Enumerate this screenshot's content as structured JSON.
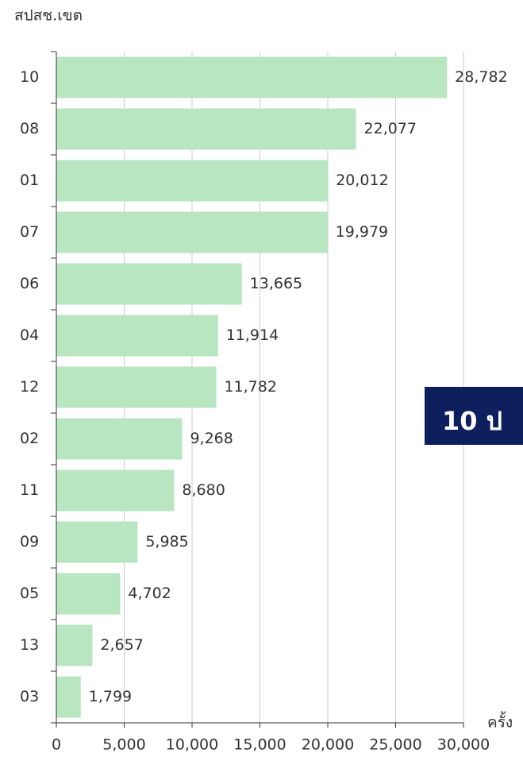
{
  "chart_data": {
    "type": "bar",
    "orientation": "horizontal",
    "y_label": "สปสช.เขต",
    "x_label": "ครั้ง",
    "categories": [
      "10",
      "08",
      "01",
      "07",
      "06",
      "04",
      "12",
      "02",
      "11",
      "09",
      "05",
      "13",
      "03"
    ],
    "values": [
      28782,
      22077,
      20012,
      19979,
      13665,
      11914,
      11782,
      9268,
      8680,
      5985,
      4702,
      2657,
      1799
    ],
    "value_labels": [
      "28,782",
      "22,077",
      "20,012",
      "19,979",
      "13,665",
      "11,914",
      "11,782",
      "9,268",
      "8,680",
      "5,985",
      "4,702",
      "2,657",
      "1,799"
    ],
    "color": "#b8e6c1",
    "xlim": [
      0,
      30000
    ],
    "xticks": [
      0,
      {
        "value": 5000,
        "label": "5,000"
      },
      {
        "value": 10000,
        "label": "10,000"
      },
      {
        "value": 15000,
        "label": "15,000"
      },
      {
        "value": 20000,
        "label": "20,000"
      },
      {
        "value": 25000,
        "label": "25,000"
      },
      {
        "value": 30000,
        "label": "30,000"
      }
    ],
    "grid": true
  },
  "banner": {
    "text": "10 ป"
  }
}
